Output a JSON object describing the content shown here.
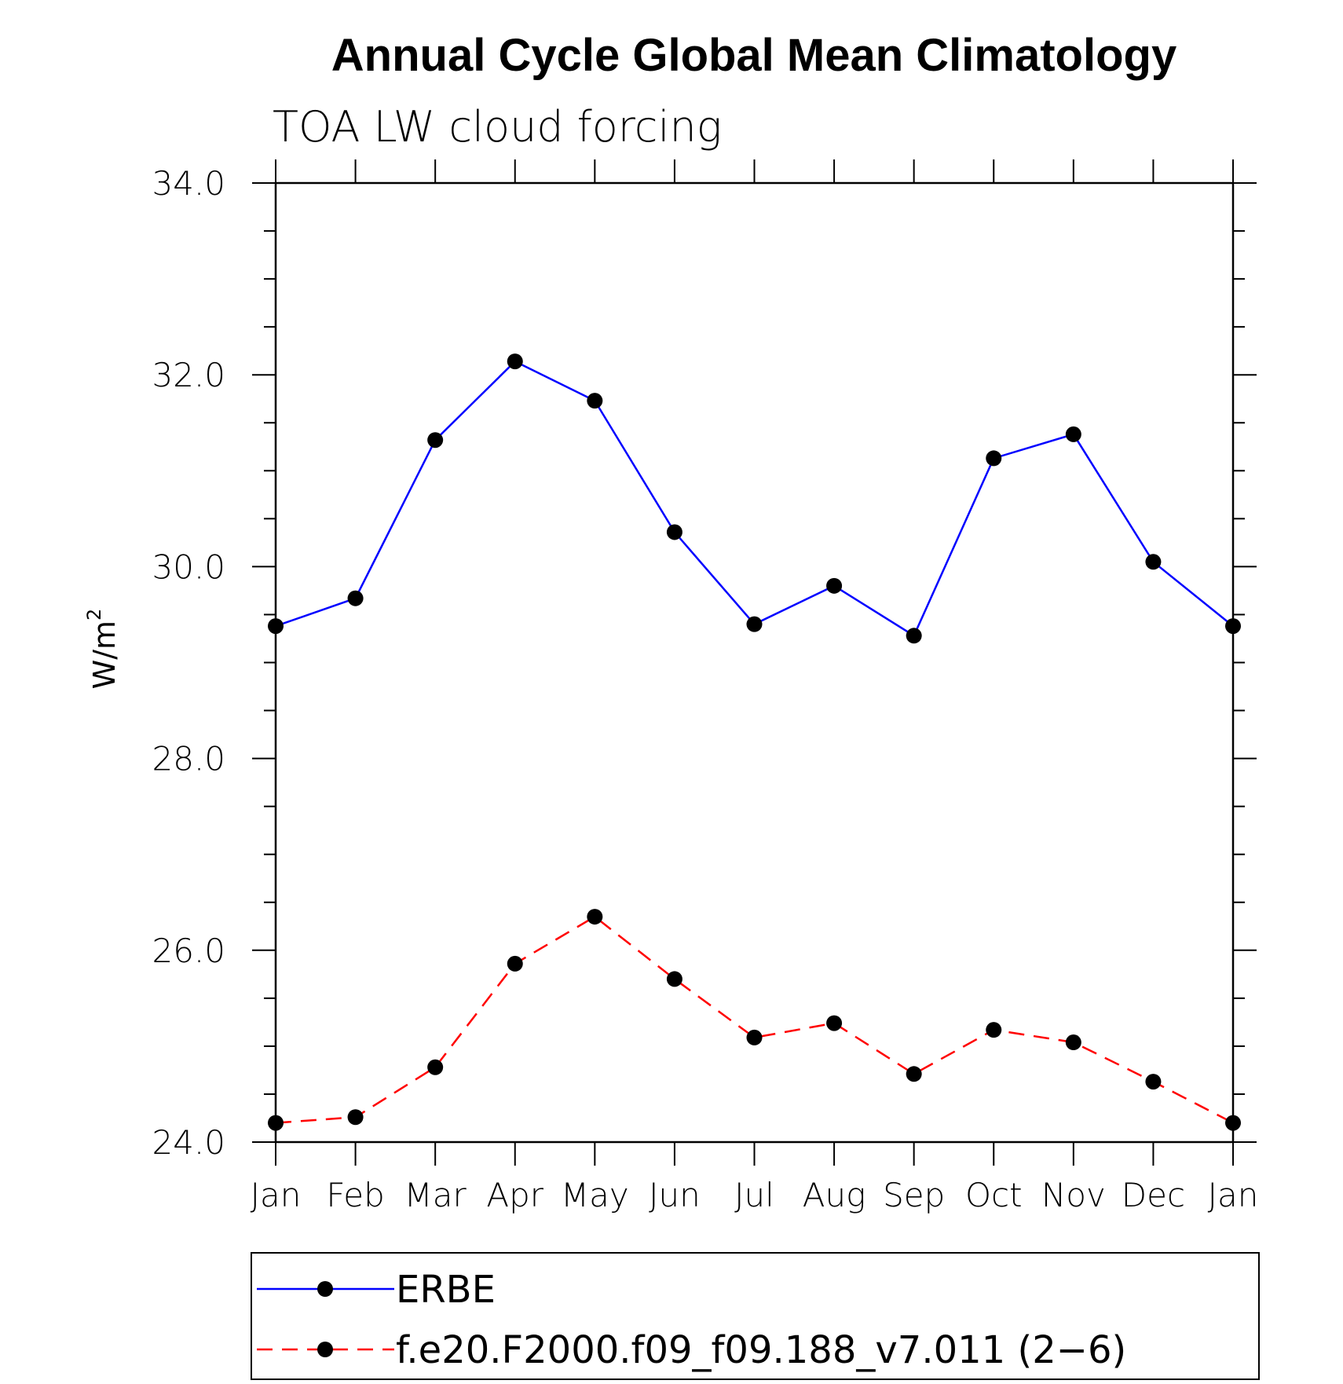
{
  "chart_data": {
    "type": "line",
    "title": "Annual Cycle Global Mean Climatology",
    "subtitle": "TOA LW cloud forcing",
    "ylabel_base": "W/m",
    "ylabel_sup": "2",
    "xlabel": "",
    "categories": [
      "Jan",
      "Feb",
      "Mar",
      "Apr",
      "May",
      "Jun",
      "Jul",
      "Aug",
      "Sep",
      "Oct",
      "Nov",
      "Dec",
      "Jan"
    ],
    "ylim": [
      24.0,
      34.0
    ],
    "y_major_ticks": [
      24.0,
      26.0,
      28.0,
      30.0,
      32.0,
      34.0
    ],
    "y_tick_labels": [
      "24.0",
      "26.0",
      "28.0",
      "30.0",
      "32.0",
      "34.0"
    ],
    "y_minor_step": 0.5,
    "grid": false,
    "legend_position": "bottom",
    "series": [
      {
        "name": "ERBE",
        "color": "#0000ff",
        "dash": "solid",
        "values": [
          29.38,
          29.67,
          31.32,
          32.14,
          31.73,
          30.36,
          29.4,
          29.8,
          29.28,
          31.13,
          31.38,
          30.05,
          29.38
        ]
      },
      {
        "name": "f.e20.F2000.f09_f09.188_v7.011 (2−6)",
        "color": "#ff0000",
        "dash": "dashed",
        "values": [
          24.2,
          24.26,
          24.78,
          25.86,
          26.35,
          25.7,
          25.09,
          25.24,
          24.71,
          25.17,
          25.04,
          24.63,
          24.2
        ]
      }
    ]
  }
}
